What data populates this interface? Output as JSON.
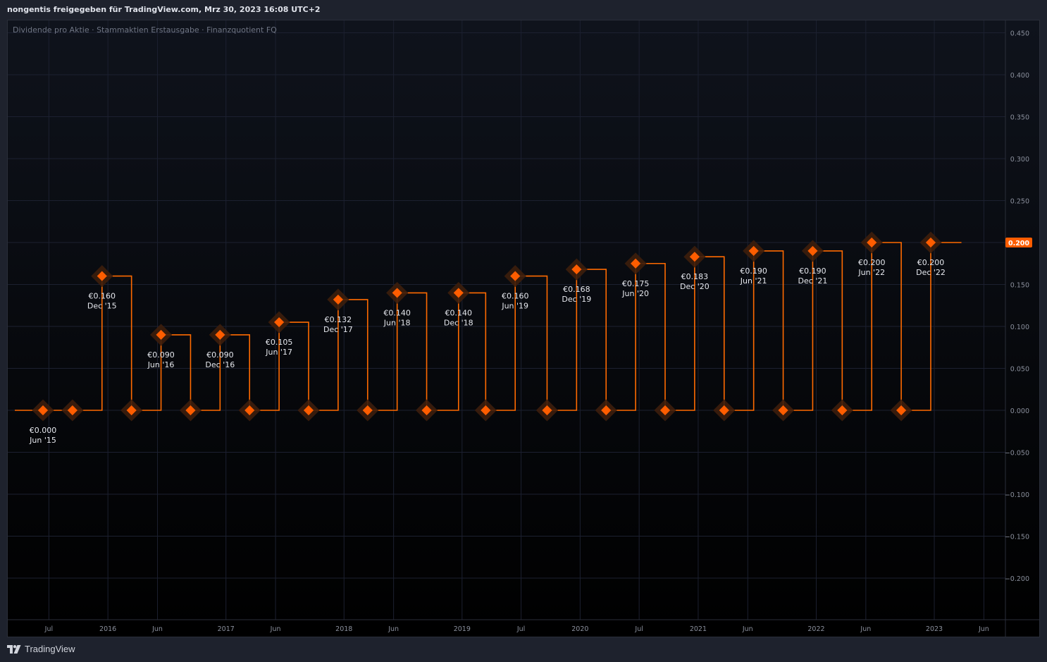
{
  "header": {
    "share_text": "nongentis freigegeben für TradingView.com, Mrz 30, 2023 16:08 UTC+2"
  },
  "footer": {
    "brand_name": "TradingView",
    "logo_icon": "tradingview-logo-icon"
  },
  "colors": {
    "line": "#ff6a00",
    "marker": "#ff5d00",
    "marker_halo": "#3d1e0c",
    "grid": "#1c2030",
    "axis_text": "#8a8f9c",
    "price_label_bg": "#ff5d00",
    "label_text": "#e6e8ee"
  },
  "chart_data": {
    "type": "line",
    "title": "Dividende pro Aktie · Stammaktien Erstausgabe · Finanzquotient FQ",
    "ylim": [
      -0.25,
      0.46
    ],
    "y_ticks": [
      0.45,
      0.4,
      0.35,
      0.3,
      0.25,
      0.2,
      0.15,
      0.1,
      0.05,
      0.0,
      -0.05,
      -0.1,
      -0.15,
      -0.2
    ],
    "y_tick_labels": [
      "0.450",
      "0.400",
      "0.350",
      "0.300",
      "0.250",
      "0.200",
      "0.150",
      "0.100",
      "0.050",
      "0.000",
      "−0.050",
      "−0.100",
      "−0.150",
      "−0.200"
    ],
    "x_ticks": [
      {
        "label": "Jul",
        "t": 2015.5
      },
      {
        "label": "2016",
        "t": 2016.0
      },
      {
        "label": "Jun",
        "t": 2016.42
      },
      {
        "label": "2017",
        "t": 2017.0
      },
      {
        "label": "Jun",
        "t": 2017.42
      },
      {
        "label": "2018",
        "t": 2018.0
      },
      {
        "label": "Jun",
        "t": 2018.42
      },
      {
        "label": "2019",
        "t": 2019.0
      },
      {
        "label": "Jul",
        "t": 2019.5
      },
      {
        "label": "2020",
        "t": 2020.0
      },
      {
        "label": "Jul",
        "t": 2020.5
      },
      {
        "label": "2021",
        "t": 2021.0
      },
      {
        "label": "Jun",
        "t": 2021.42
      },
      {
        "label": "2022",
        "t": 2022.0
      },
      {
        "label": "Jun",
        "t": 2022.42
      },
      {
        "label": "2023",
        "t": 2023.0
      },
      {
        "label": "Jun",
        "t": 2023.42
      }
    ],
    "x_range": [
      2015.2,
      2023.63
    ],
    "series": [
      {
        "points": [
          {
            "t": 2015.45,
            "value": 0.0,
            "period": "Jun '15",
            "label_value": "€0.000"
          },
          {
            "t": 2015.7,
            "value": 0.0
          },
          {
            "t": 2015.95,
            "value": 0.16,
            "period": "Dec '15",
            "label_value": "€0.160"
          },
          {
            "t": 2016.2,
            "value": 0.0
          },
          {
            "t": 2016.45,
            "value": 0.09,
            "period": "Jun '16",
            "label_value": "€0.090"
          },
          {
            "t": 2016.7,
            "value": 0.0
          },
          {
            "t": 2016.95,
            "value": 0.09,
            "period": "Dec '16",
            "label_value": "€0.090"
          },
          {
            "t": 2017.2,
            "value": 0.0
          },
          {
            "t": 2017.45,
            "value": 0.105,
            "period": "Jun '17",
            "label_value": "€0.105"
          },
          {
            "t": 2017.7,
            "value": 0.0
          },
          {
            "t": 2017.95,
            "value": 0.132,
            "period": "Dec '17",
            "label_value": "€0.132"
          },
          {
            "t": 2018.2,
            "value": 0.0
          },
          {
            "t": 2018.45,
            "value": 0.14,
            "period": "Jun '18",
            "label_value": "€0.140"
          },
          {
            "t": 2018.7,
            "value": 0.0
          },
          {
            "t": 2018.97,
            "value": 0.14,
            "period": "Dec '18",
            "label_value": "€0.140"
          },
          {
            "t": 2019.2,
            "value": 0.0
          },
          {
            "t": 2019.45,
            "value": 0.16,
            "period": "Jun '19",
            "label_value": "€0.160"
          },
          {
            "t": 2019.72,
            "value": 0.0
          },
          {
            "t": 2019.97,
            "value": 0.168,
            "period": "Dec '19",
            "label_value": "€0.168"
          },
          {
            "t": 2020.22,
            "value": 0.0
          },
          {
            "t": 2020.47,
            "value": 0.175,
            "period": "Jun '20",
            "label_value": "€0.175"
          },
          {
            "t": 2020.72,
            "value": 0.0
          },
          {
            "t": 2020.97,
            "value": 0.183,
            "period": "Dec '20",
            "label_value": "€0.183"
          },
          {
            "t": 2021.22,
            "value": 0.0
          },
          {
            "t": 2021.47,
            "value": 0.19,
            "period": "Jun '21",
            "label_value": "€0.190"
          },
          {
            "t": 2021.72,
            "value": 0.0
          },
          {
            "t": 2021.97,
            "value": 0.19,
            "period": "Dec '21",
            "label_value": "€0.190"
          },
          {
            "t": 2022.22,
            "value": 0.0
          },
          {
            "t": 2022.47,
            "value": 0.2,
            "period": "Jun '22",
            "label_value": "€0.200"
          },
          {
            "t": 2022.72,
            "value": 0.0
          },
          {
            "t": 2022.97,
            "value": 0.2,
            "period": "Dec '22",
            "label_value": "€0.200"
          }
        ],
        "end_t": 2023.23
      }
    ],
    "last_value_label": "0.200",
    "grid": true
  }
}
